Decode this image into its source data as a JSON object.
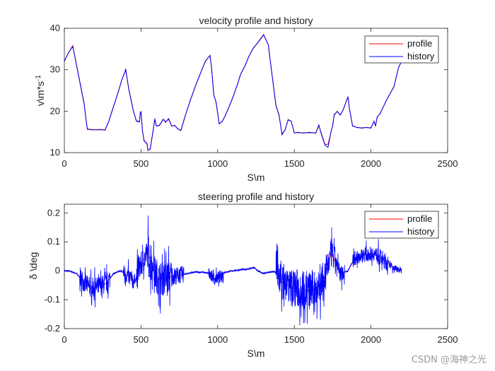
{
  "chart_data": [
    {
      "type": "line",
      "title": "velocity profile and history",
      "xlabel": "S\\m",
      "ylabel": "v\\m*s^-1",
      "xlim": [
        0,
        2500
      ],
      "ylim": [
        10,
        40
      ],
      "xticks": [
        0,
        500,
        1000,
        1500,
        2000,
        2500
      ],
      "yticks": [
        10,
        20,
        30,
        40
      ],
      "xtick_labels": [
        "0",
        "500",
        "1000",
        "1500",
        "2000",
        "2500"
      ],
      "ytick_labels": [
        "10",
        "20",
        "30",
        "40"
      ],
      "grid": false,
      "legend_position": "top-right",
      "x": [
        0,
        25,
        55,
        90,
        130,
        140,
        150,
        170,
        200,
        235,
        265,
        290,
        320,
        350,
        375,
        395,
        400,
        420,
        450,
        470,
        490,
        495,
        500,
        510,
        520,
        540,
        545,
        560,
        580,
        590,
        600,
        620,
        645,
        660,
        680,
        700,
        720,
        740,
        760,
        790,
        820,
        850,
        880,
        920,
        950,
        960,
        975,
        990,
        1010,
        1030,
        1050,
        1080,
        1100,
        1130,
        1150,
        1180,
        1200,
        1230,
        1270,
        1300,
        1330,
        1380,
        1400,
        1420,
        1440,
        1460,
        1480,
        1500,
        1520,
        1560,
        1600,
        1640,
        1660,
        1675,
        1700,
        1720,
        1740,
        1750,
        1760,
        1780,
        1800,
        1820,
        1840,
        1850,
        1860,
        1880,
        1910,
        1940,
        1970,
        2000,
        2020,
        2030,
        2040,
        2060,
        2100,
        2150,
        2180,
        2200
      ],
      "series": [
        {
          "name": "profile",
          "color": "#ff0000",
          "values": [
            32,
            34,
            35.8,
            29,
            21.5,
            18.5,
            15.8,
            15.5,
            15.5,
            15.5,
            15.5,
            17.5,
            21,
            24.5,
            27.5,
            29.5,
            30,
            25.5,
            20,
            17.7,
            17.5,
            19.5,
            20,
            15,
            13,
            12,
            10.5,
            11,
            15.5,
            18,
            16.5,
            16.5,
            18,
            17.5,
            18,
            16.5,
            16.5,
            15.8,
            15.3,
            19,
            22.5,
            25.5,
            28.5,
            32,
            33.5,
            30.5,
            24,
            22,
            17,
            17.5,
            19,
            21.5,
            23.5,
            26.5,
            29,
            31,
            33,
            35,
            37,
            38.5,
            36,
            21.5,
            19,
            14.5,
            15.5,
            18,
            17.5,
            14.8,
            14.8,
            14.8,
            14.8,
            14.8,
            16.5,
            14.8,
            12,
            12,
            15,
            16.5,
            19,
            20,
            19,
            20.5,
            22.5,
            23.5,
            20.5,
            16.5,
            16,
            16,
            16,
            16,
            17.5,
            16.5,
            18.5,
            19.5,
            22.5,
            26,
            30.5,
            32
          ]
        },
        {
          "name": "history",
          "color": "#0000ff",
          "values": [
            32.1,
            34,
            35.6,
            29.2,
            21.7,
            18.3,
            15.6,
            15.6,
            15.5,
            15.6,
            15.4,
            17.6,
            21.1,
            24.4,
            27.6,
            29.4,
            30.2,
            25.3,
            20.1,
            17.6,
            17.4,
            19.7,
            19.8,
            15.2,
            12.8,
            12.2,
            10.6,
            10.8,
            15.6,
            18.2,
            16.4,
            16.6,
            18.1,
            17.3,
            18.2,
            16.4,
            16.6,
            15.7,
            15.4,
            19.1,
            22.4,
            25.6,
            28.4,
            32.1,
            33.4,
            30.6,
            23.8,
            22.2,
            16.9,
            17.6,
            18.9,
            21.6,
            23.4,
            26.6,
            28.9,
            31.1,
            32.9,
            35.1,
            36.9,
            38.4,
            36.1,
            21.3,
            19.2,
            14.3,
            15.6,
            17.9,
            17.6,
            14.7,
            14.9,
            14.7,
            14.9,
            14.7,
            16.7,
            14.6,
            11.8,
            11.3,
            15.2,
            16.4,
            19.2,
            19.9,
            19.1,
            20.4,
            22.6,
            23.4,
            20.6,
            16.4,
            16.1,
            15.9,
            16.1,
            15.9,
            17.6,
            16.4,
            18.6,
            19.4,
            22.6,
            25.9,
            30.6,
            32
          ]
        }
      ]
    },
    {
      "type": "line",
      "title": "steering profile and history",
      "xlabel": "S\\m",
      "ylabel": "δ \\deg",
      "xlim": [
        0,
        2500
      ],
      "ylim": [
        -0.2,
        0.23
      ],
      "xticks": [
        0,
        500,
        1000,
        1500,
        2000,
        2500
      ],
      "yticks": [
        -0.2,
        -0.1,
        0,
        0.1,
        0.2
      ],
      "xtick_labels": [
        "0",
        "500",
        "1000",
        "1500",
        "2000",
        "2500"
      ],
      "ytick_labels": [
        "-0.2",
        "-0.1",
        "0",
        "0.1",
        "0.2"
      ],
      "grid": false,
      "legend_position": "top-right",
      "x_range": [
        0,
        2200
      ],
      "series": [
        {
          "name": "profile",
          "color": "#ff0000",
          "profile_points": [
            [
              0,
              0
            ],
            [
              40,
              -0.002
            ],
            [
              80,
              -0.01
            ],
            [
              130,
              -0.04
            ],
            [
              170,
              -0.06
            ],
            [
              220,
              -0.055
            ],
            [
              270,
              -0.045
            ],
            [
              320,
              -0.01
            ],
            [
              370,
              0.0
            ],
            [
              420,
              -0.02
            ],
            [
              460,
              -0.04
            ],
            [
              480,
              0.0
            ],
            [
              500,
              0.02
            ],
            [
              540,
              0.06
            ],
            [
              560,
              0.04
            ],
            [
              580,
              0.0
            ],
            [
              620,
              -0.03
            ],
            [
              700,
              -0.02
            ],
            [
              800,
              -0.01
            ],
            [
              850,
              -0.005
            ],
            [
              900,
              -0.005
            ],
            [
              950,
              -0.01
            ],
            [
              980,
              -0.03
            ],
            [
              1010,
              -0.02
            ],
            [
              1050,
              -0.005
            ],
            [
              1100,
              0.0
            ],
            [
              1180,
              0.005
            ],
            [
              1240,
              0.01
            ],
            [
              1260,
              0.0
            ],
            [
              1300,
              -0.01
            ],
            [
              1350,
              -0.003
            ],
            [
              1390,
              -0.005
            ],
            [
              1420,
              -0.04
            ],
            [
              1500,
              -0.06
            ],
            [
              1600,
              -0.07
            ],
            [
              1680,
              -0.05
            ],
            [
              1720,
              0.02
            ],
            [
              1740,
              0.06
            ],
            [
              1760,
              0.04
            ],
            [
              1800,
              -0.01
            ],
            [
              1850,
              0.0
            ],
            [
              1890,
              0.04
            ],
            [
              1950,
              0.055
            ],
            [
              2020,
              0.06
            ],
            [
              2050,
              0.05
            ],
            [
              2100,
              0.03
            ],
            [
              2150,
              0.01
            ],
            [
              2200,
              0.0
            ]
          ]
        },
        {
          "name": "history",
          "color": "#0000ff",
          "noisy_segments": [
            [
              100,
              240,
              0.035
            ],
            [
              240,
              300,
              0.035
            ],
            [
              380,
              460,
              0.03
            ],
            [
              470,
              545,
              0.045
            ],
            [
              545,
              575,
              0.08
            ],
            [
              580,
              700,
              0.06
            ],
            [
              700,
              780,
              0.03
            ],
            [
              940,
              1040,
              0.02
            ],
            [
              1380,
              1480,
              0.06
            ],
            [
              1480,
              1700,
              0.07
            ],
            [
              1700,
              1780,
              0.05
            ],
            [
              1780,
              1830,
              0.03
            ],
            [
              1880,
              2040,
              0.025
            ],
            [
              2040,
              2110,
              0.03
            ],
            [
              2110,
              2200,
              0.012
            ]
          ]
        }
      ]
    }
  ],
  "watermark": "CSDN @海神之光"
}
